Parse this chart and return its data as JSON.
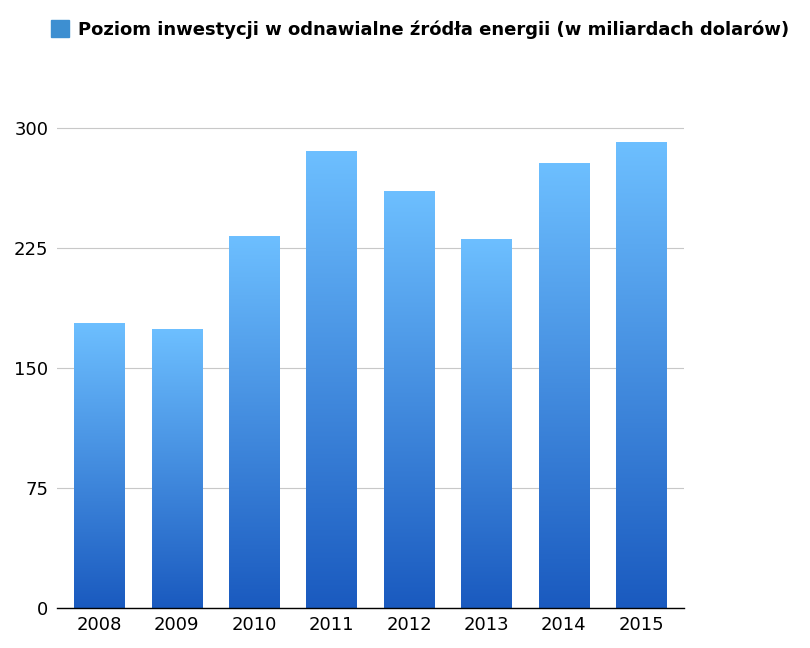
{
  "years": [
    "2008",
    "2009",
    "2010",
    "2011",
    "2012",
    "2013",
    "2014",
    "2015"
  ],
  "values": [
    178,
    174,
    232,
    285,
    260,
    230,
    278,
    291
  ],
  "bar_color_top": "#6dbfff",
  "bar_color_bottom": "#1a5abf",
  "legend_label": "Poziom inwestycji w odnawialne źródła energii (w miliardach dolarów)",
  "legend_color": "#3d8fd1",
  "background_color": "#ffffff",
  "grid_color": "#c8c8c8",
  "yticks": [
    0,
    75,
    150,
    225,
    300
  ],
  "ylim": [
    0,
    315
  ],
  "tick_fontsize": 13,
  "legend_fontsize": 13,
  "bar_width": 0.65
}
